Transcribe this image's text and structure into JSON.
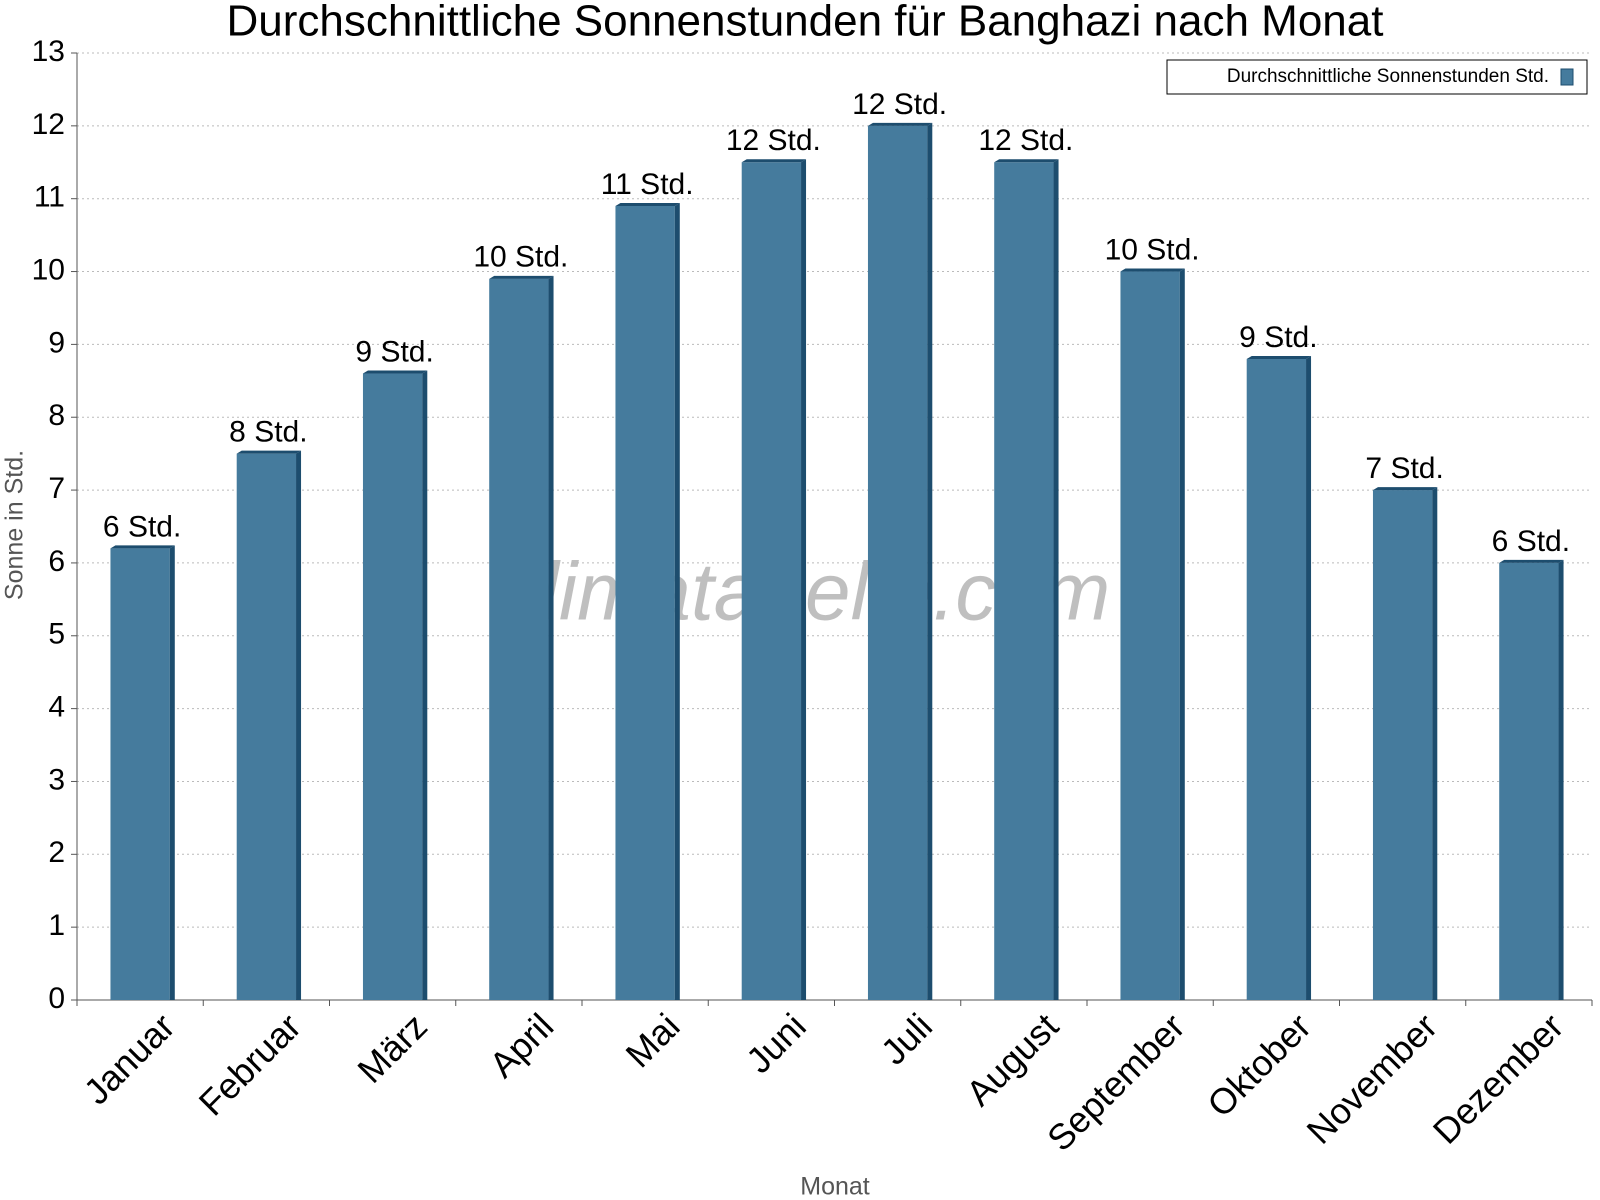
{
  "chart_data": {
    "type": "bar",
    "title": "Durchschnittliche Sonnenstunden für Banghazi nach Monat",
    "x_label": "Monat",
    "y_label": "Sonne in Std.",
    "watermark": "klimatabelle.com",
    "categories": [
      "Januar",
      "Februar",
      "März",
      "April",
      "Mai",
      "Juni",
      "Juli",
      "August",
      "September",
      "Oktober",
      "November",
      "Dezember"
    ],
    "series": [
      {
        "name": "Durchschnittliche Sonnenstunden Std.",
        "color": "#457b9d",
        "values": [
          6.2,
          7.5,
          8.6,
          9.9,
          10.9,
          11.5,
          12.0,
          11.5,
          10.0,
          8.8,
          7.0,
          6.0
        ],
        "value_labels": [
          "6 Std.",
          "8 Std.",
          "9 Std.",
          "10 Std.",
          "11 Std.",
          "12 Std.",
          "12 Std.",
          "12 Std.",
          "10 Std.",
          "9 Std.",
          "7 Std.",
          "6 Std."
        ]
      }
    ],
    "ylim": [
      0,
      13
    ],
    "yticks": [
      0,
      1,
      2,
      3,
      4,
      5,
      6,
      7,
      8,
      9,
      10,
      11,
      12,
      13
    ],
    "grid": true,
    "legend": "top-right"
  }
}
